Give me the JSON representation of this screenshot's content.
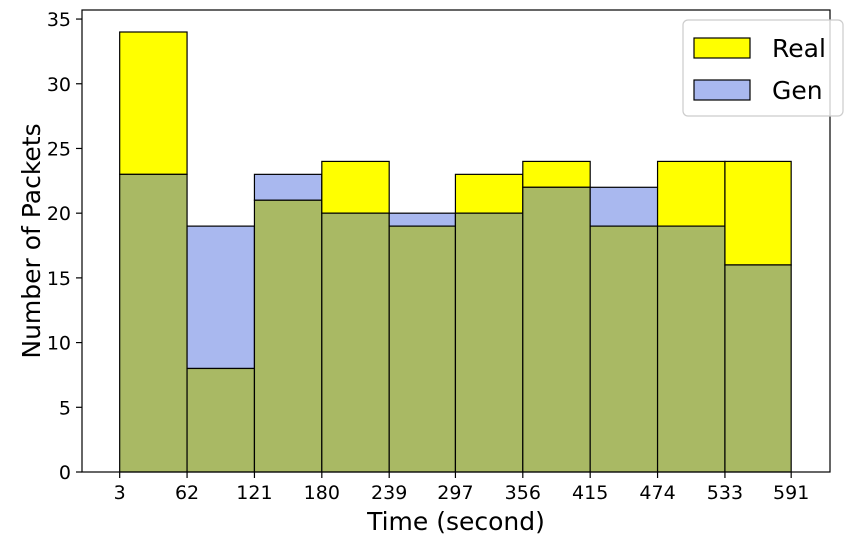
{
  "chart_data": {
    "type": "histogram",
    "title": "",
    "xlabel": "Time (second)",
    "ylabel": "Number of Packets",
    "x_ticks": [
      "3",
      "62",
      "121",
      "180",
      "239",
      "297",
      "356",
      "415",
      "474",
      "533",
      "591"
    ],
    "y_ticks": [
      0,
      5,
      10,
      15,
      20,
      25,
      30,
      35
    ],
    "xlim": [
      -30,
      625
    ],
    "ylim": [
      0,
      35.7
    ],
    "bin_edges": [
      3,
      62,
      121,
      180,
      239,
      297,
      356,
      415,
      474,
      533,
      591
    ],
    "series": [
      {
        "name": "Real",
        "color": "#ffff00",
        "values": [
          34,
          8,
          21,
          24,
          19,
          23,
          24,
          19,
          24,
          24
        ]
      },
      {
        "name": "Gen",
        "color": "#a9b8ef",
        "values": [
          23,
          19,
          23,
          20,
          20,
          20,
          22,
          22,
          19,
          16
        ]
      }
    ],
    "overlap_color": "#a9b964",
    "legend": {
      "position": "top-right",
      "entries": [
        "Real",
        "Gen"
      ]
    },
    "grid": false
  }
}
